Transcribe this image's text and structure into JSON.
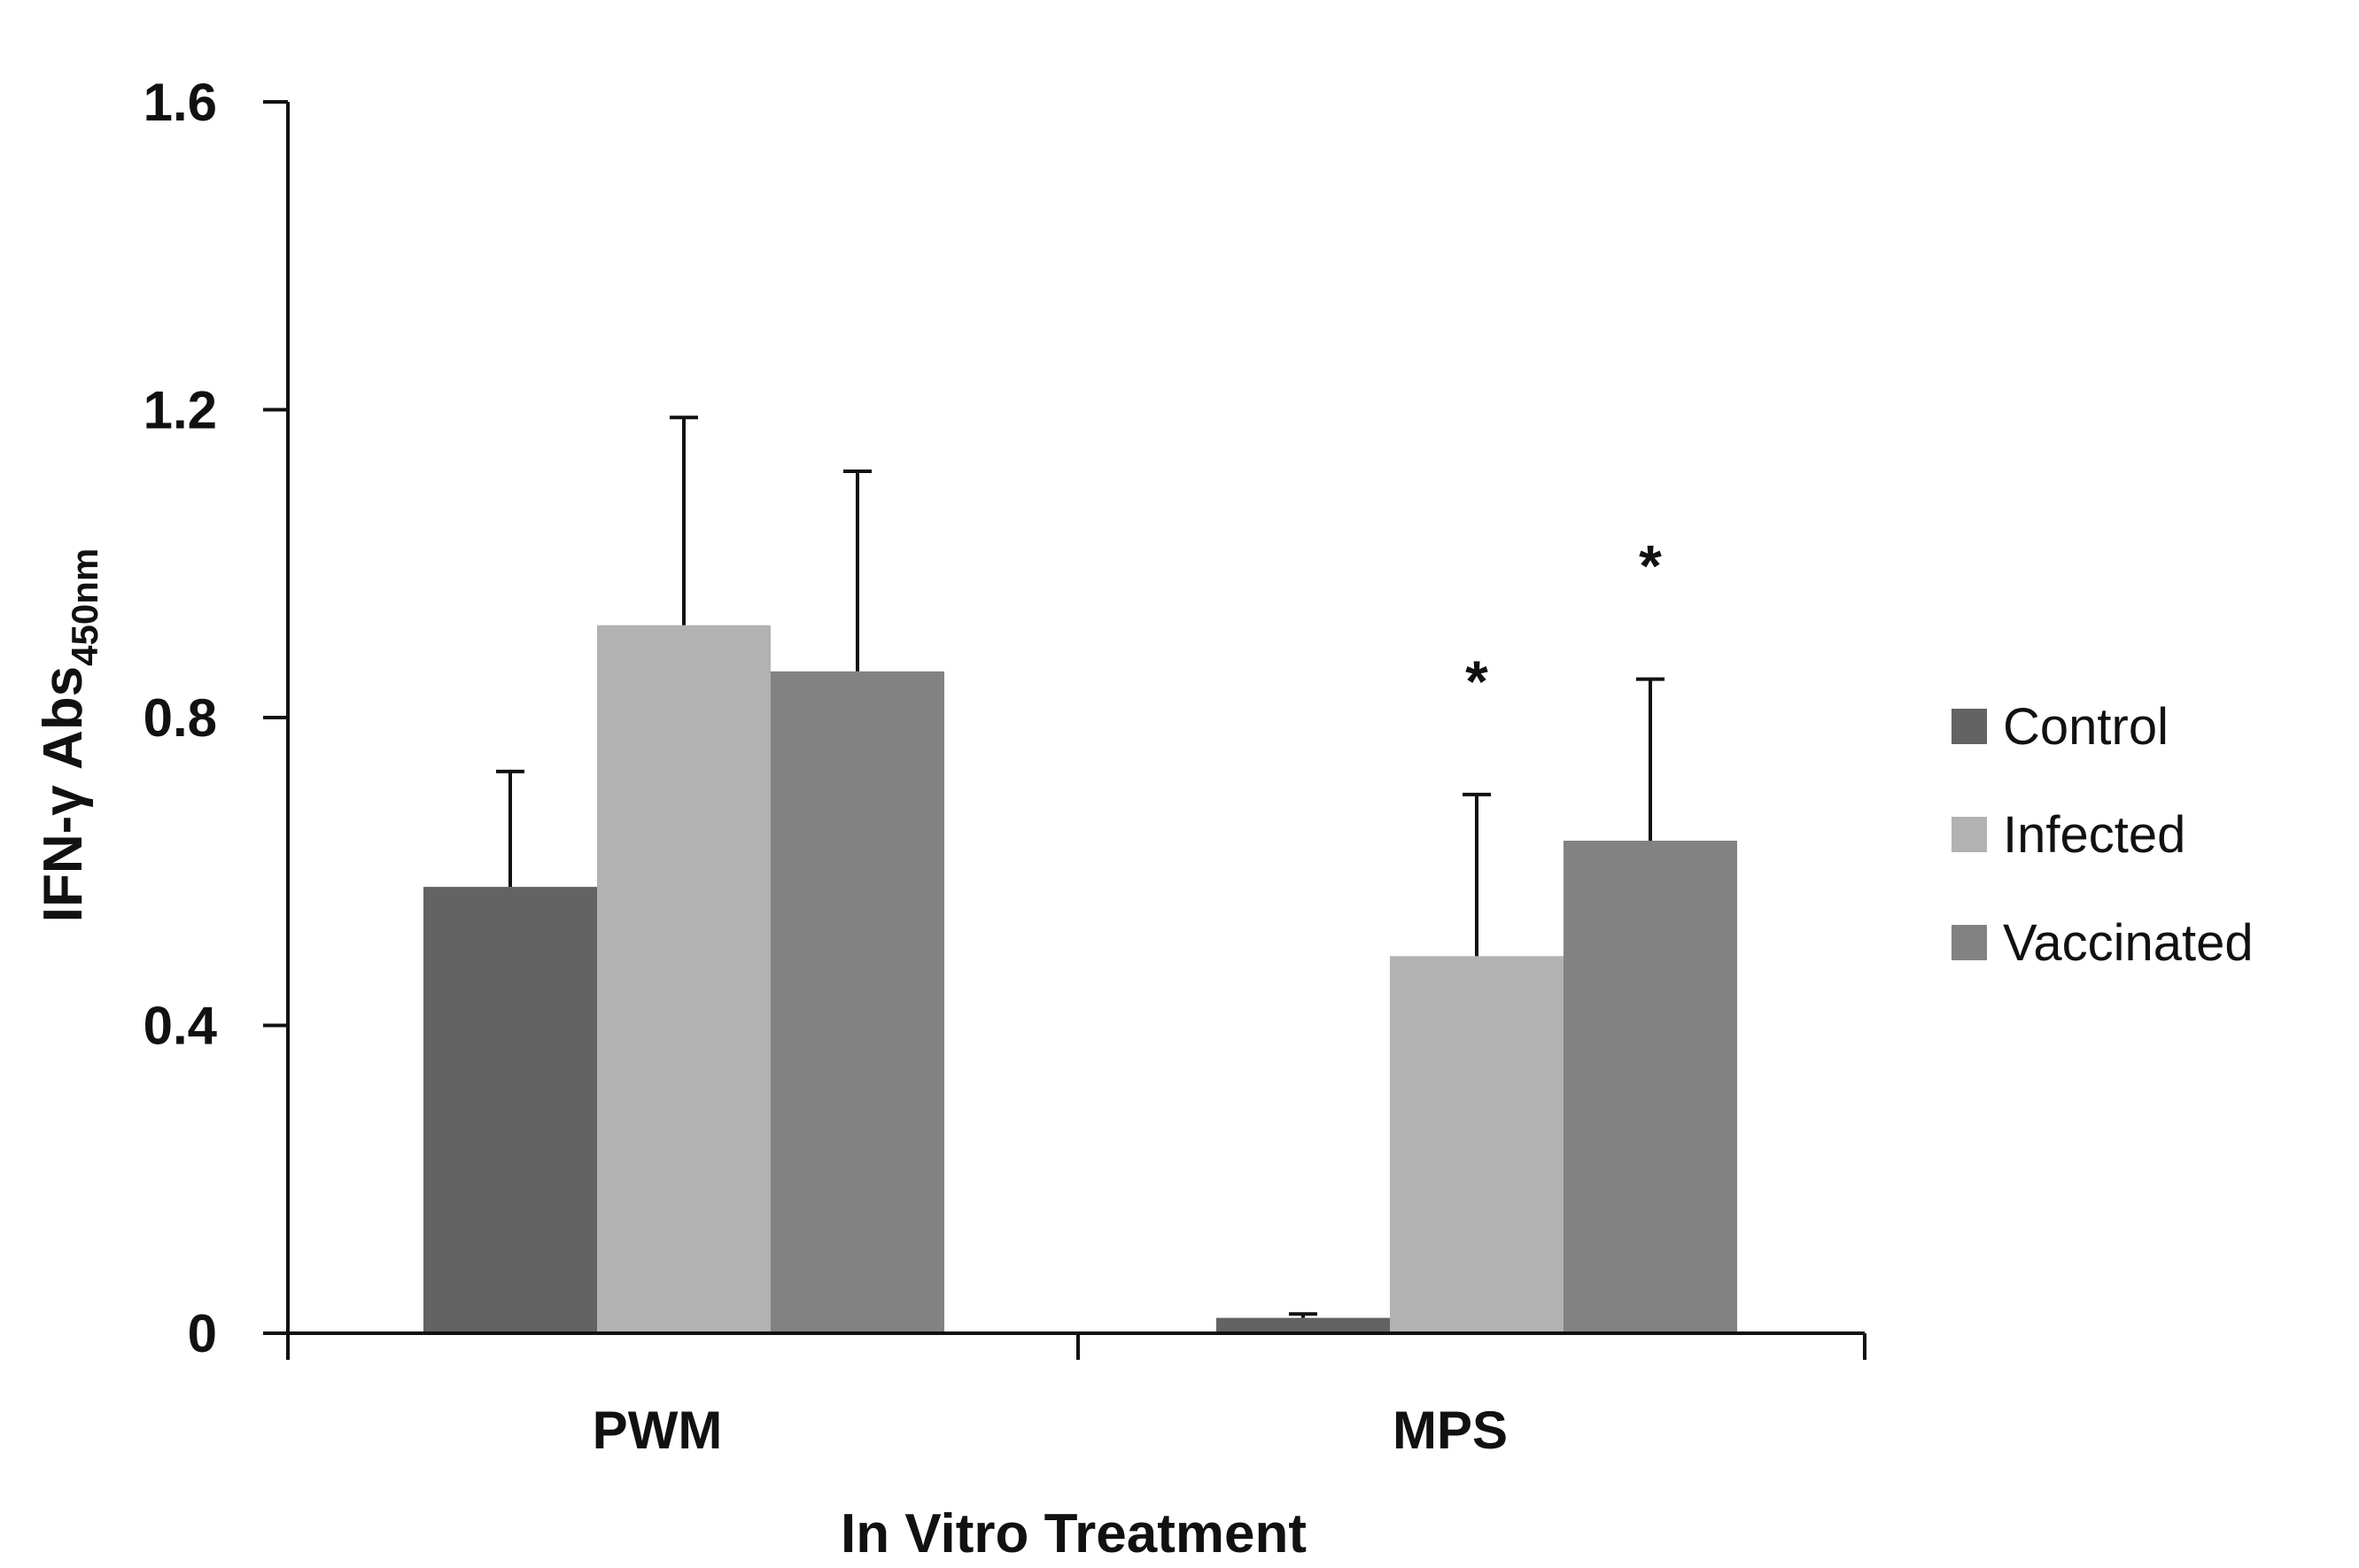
{
  "chart_data": {
    "type": "bar",
    "title": "",
    "xlabel": "In Vitro Treatment",
    "ylabel": "IFN-γ Abs",
    "ylabel_subscript": "450nm",
    "categories": [
      "PWM",
      "MPS"
    ],
    "ylim": [
      0,
      1.6
    ],
    "yticks": [
      "0",
      "0.4",
      "0.8",
      "1.2",
      "1.6"
    ],
    "ytick_values": [
      0,
      0.4,
      0.8,
      1.2,
      1.6
    ],
    "grid": false,
    "legend_position": "right",
    "series": [
      {
        "name": "Control",
        "color": "#636363",
        "values": [
          0.58,
          0.02
        ],
        "errors": [
          0.15,
          0.005
        ],
        "annotations": [
          "",
          ""
        ]
      },
      {
        "name": "Infected",
        "color": "#b2b2b2",
        "values": [
          0.92,
          0.49
        ],
        "errors": [
          0.27,
          0.21
        ],
        "annotations": [
          "",
          "*"
        ]
      },
      {
        "name": "Vaccinated",
        "color": "#828282",
        "values": [
          0.86,
          0.64
        ],
        "errors": [
          0.26,
          0.21
        ],
        "annotations": [
          "",
          "*"
        ]
      }
    ]
  }
}
